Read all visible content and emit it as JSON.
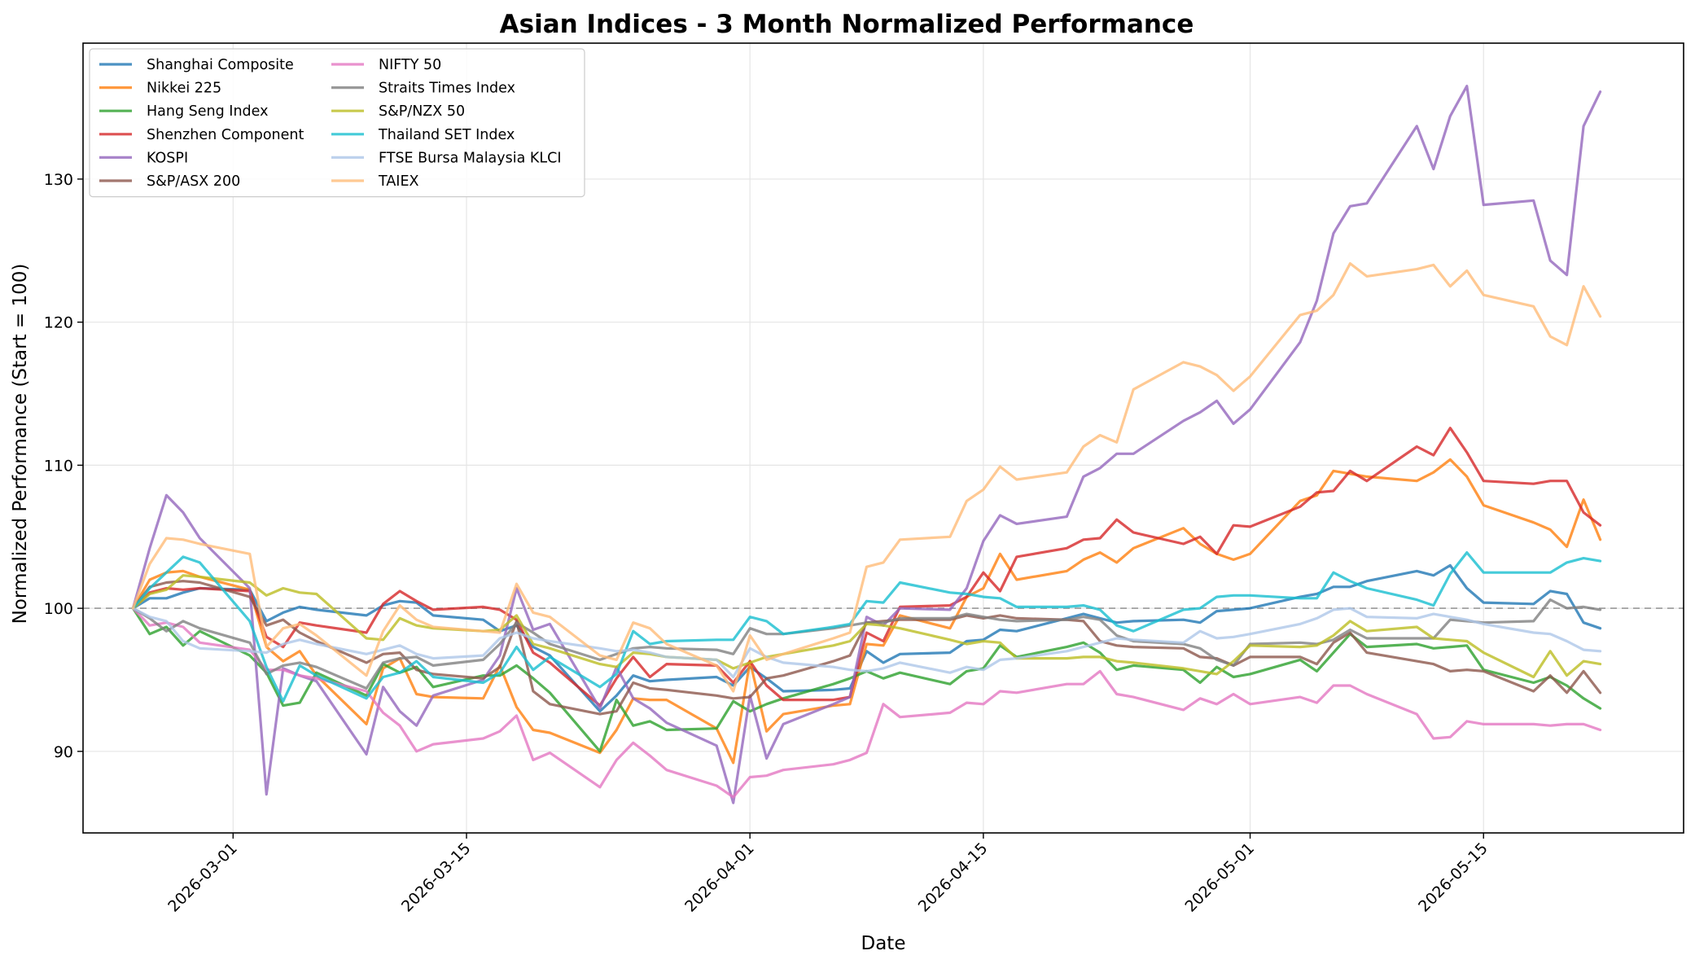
{
  "chart_data": {
    "type": "line",
    "title": "Asian Indices - 3 Month Normalized Performance",
    "xlabel": "Date",
    "ylabel": "Normalized Performance (Start = 100)",
    "x_type": "date",
    "xlim": [
      "2026-02-20",
      "2026-05-27"
    ],
    "ylim": [
      84.3,
      139.5
    ],
    "x_ticks": [
      "2026-03-01",
      "2026-03-15",
      "2026-04-01",
      "2026-04-15",
      "2026-05-01",
      "2026-05-15"
    ],
    "y_ticks": [
      90,
      100,
      110,
      120,
      130
    ],
    "reference_line": 100,
    "grid": true,
    "legend_position": "upper-left",
    "legend_columns": 2,
    "x": [
      "2026-02-23",
      "2026-02-24",
      "2026-02-25",
      "2026-02-26",
      "2026-02-27",
      "2026-03-02",
      "2026-03-03",
      "2026-03-04",
      "2026-03-05",
      "2026-03-06",
      "2026-03-09",
      "2026-03-10",
      "2026-03-11",
      "2026-03-12",
      "2026-03-13",
      "2026-03-16",
      "2026-03-17",
      "2026-03-18",
      "2026-03-19",
      "2026-03-20",
      "2026-03-23",
      "2026-03-24",
      "2026-03-25",
      "2026-03-26",
      "2026-03-27",
      "2026-03-30",
      "2026-03-31",
      "2026-04-01",
      "2026-04-02",
      "2026-04-03",
      "2026-04-06",
      "2026-04-07",
      "2026-04-08",
      "2026-04-09",
      "2026-04-10",
      "2026-04-13",
      "2026-04-14",
      "2026-04-15",
      "2026-04-16",
      "2026-04-17",
      "2026-04-20",
      "2026-04-21",
      "2026-04-22",
      "2026-04-23",
      "2026-04-24",
      "2026-04-27",
      "2026-04-28",
      "2026-04-29",
      "2026-04-30",
      "2026-05-01",
      "2026-05-04",
      "2026-05-05",
      "2026-05-06",
      "2026-05-07",
      "2026-05-08",
      "2026-05-11",
      "2026-05-12",
      "2026-05-13",
      "2026-05-14",
      "2026-05-15",
      "2026-05-18",
      "2026-05-19",
      "2026-05-20",
      "2026-05-21",
      "2026-05-22"
    ],
    "series": [
      {
        "name": "Shanghai Composite",
        "color": "#1f77b4",
        "values": [
          100,
          100.7,
          100.7,
          101.1,
          101.4,
          101.3,
          99.1,
          99.7,
          100.1,
          99.9,
          99.5,
          100.2,
          100.5,
          100.4,
          99.5,
          99.2,
          98.4,
          98.8,
          97.3,
          96.7,
          92.8,
          93.9,
          95.3,
          94.9,
          95.0,
          95.2,
          94.6,
          95.9,
          95.1,
          94.2,
          94.3,
          94.4,
          97.0,
          96.2,
          96.8,
          96.9,
          97.7,
          97.8,
          98.5,
          98.4,
          99.3,
          99.6,
          99.3,
          99.0,
          99.1,
          99.2,
          99.0,
          99.8,
          99.9,
          100.0,
          100.8,
          101.0,
          101.5,
          101.5,
          101.9,
          102.6,
          102.3,
          103.0,
          101.4,
          100.4,
          100.3,
          101.2,
          101.0,
          99.0,
          98.6
        ]
      },
      {
        "name": "Nikkei 225",
        "color": "#ff7f0e",
        "values": [
          100,
          102.0,
          102.5,
          102.6,
          102.2,
          101.3,
          97.3,
          96.3,
          97.0,
          95.3,
          91.9,
          95.8,
          96.5,
          94.0,
          93.8,
          93.7,
          96.0,
          93.1,
          91.5,
          91.3,
          89.9,
          91.5,
          93.7,
          93.6,
          93.6,
          91.6,
          89.2,
          96.3,
          91.4,
          92.6,
          93.2,
          93.3,
          97.5,
          97.4,
          99.5,
          98.6,
          100.8,
          101.4,
          103.8,
          102.0,
          102.6,
          103.4,
          103.9,
          103.2,
          104.2,
          105.6,
          104.5,
          103.8,
          103.4,
          103.8,
          107.5,
          107.9,
          109.6,
          109.4,
          109.2,
          108.9,
          109.5,
          110.4,
          109.2,
          107.2,
          106.0,
          105.5,
          104.3,
          107.6,
          104.8
        ]
      },
      {
        "name": "Hang Seng Index",
        "color": "#2ca02c",
        "values": [
          100,
          98.2,
          98.7,
          97.4,
          98.4,
          96.7,
          95.5,
          93.2,
          93.4,
          95.5,
          93.9,
          96.1,
          95.5,
          95.9,
          94.5,
          95.3,
          95.3,
          96.0,
          95.1,
          94.1,
          90.0,
          93.6,
          91.8,
          92.1,
          91.5,
          91.6,
          93.5,
          92.8,
          93.3,
          93.7,
          94.7,
          95.1,
          95.6,
          95.1,
          95.5,
          94.7,
          95.6,
          95.8,
          97.4,
          96.6,
          97.3,
          97.6,
          96.9,
          95.7,
          96.0,
          95.7,
          94.8,
          95.9,
          95.2,
          95.4,
          96.4,
          95.6,
          96.9,
          98.2,
          97.3,
          97.5,
          97.2,
          97.3,
          97.4,
          95.7,
          94.8,
          95.2,
          94.6,
          93.7,
          93.0
        ]
      },
      {
        "name": "Shenzhen Component",
        "color": "#d62728",
        "values": [
          100,
          101.1,
          101.4,
          101.3,
          101.4,
          101.2,
          98.0,
          97.3,
          99.0,
          98.8,
          98.3,
          100.3,
          101.2,
          100.5,
          99.9,
          100.1,
          99.9,
          99.2,
          96.9,
          96.2,
          93.2,
          95.1,
          96.6,
          95.2,
          96.1,
          96.0,
          94.8,
          96.3,
          94.6,
          93.6,
          93.6,
          93.8,
          98.3,
          97.7,
          100.1,
          100.2,
          100.8,
          102.5,
          101.2,
          103.6,
          104.2,
          104.8,
          104.9,
          106.2,
          105.3,
          104.5,
          105.0,
          103.8,
          105.8,
          105.7,
          107.1,
          108.1,
          108.2,
          109.6,
          108.9,
          111.3,
          110.7,
          112.6,
          110.9,
          108.9,
          108.7,
          108.9,
          108.9,
          106.7,
          105.8
        ]
      },
      {
        "name": "KOSPI",
        "color": "#9467bd",
        "values": [
          100,
          104.2,
          107.9,
          106.7,
          104.9,
          101.4,
          87.0,
          95.8,
          95.3,
          94.9,
          89.8,
          94.5,
          92.8,
          91.8,
          93.9,
          95.0,
          96.7,
          101.4,
          98.5,
          98.9,
          93.0,
          95.9,
          93.7,
          93.0,
          92.0,
          90.4,
          86.4,
          93.9,
          89.5,
          91.9,
          93.3,
          93.8,
          99.4,
          98.8,
          100.0,
          99.9,
          101.4,
          104.7,
          106.5,
          105.9,
          106.4,
          109.2,
          109.8,
          110.8,
          110.8,
          113.1,
          113.7,
          114.5,
          112.9,
          113.9,
          118.6,
          121.5,
          126.2,
          128.1,
          128.3,
          133.7,
          130.7,
          134.4,
          136.5,
          128.2,
          128.5,
          124.3,
          123.3,
          133.7,
          136.1
        ]
      },
      {
        "name": "S&P/ASX 200",
        "color": "#8c564b",
        "values": [
          100,
          101.5,
          101.8,
          101.9,
          101.8,
          100.8,
          98.8,
          99.2,
          98.3,
          97.7,
          96.2,
          96.8,
          96.9,
          95.7,
          95.4,
          95.1,
          95.9,
          99.1,
          94.2,
          93.3,
          92.6,
          92.8,
          94.8,
          94.4,
          94.3,
          93.9,
          93.7,
          93.8,
          95.1,
          95.3,
          96.3,
          96.7,
          99.0,
          99.1,
          99.2,
          99.2,
          99.5,
          99.3,
          99.5,
          99.3,
          99.2,
          99.1,
          97.7,
          97.4,
          97.3,
          97.2,
          96.6,
          96.5,
          96.0,
          96.6,
          96.6,
          96.1,
          97.6,
          98.3,
          96.9,
          96.3,
          96.1,
          95.6,
          95.7,
          95.6,
          94.2,
          95.3,
          94.1,
          95.6,
          94.1
        ]
      },
      {
        "name": "NIFTY 50",
        "color": "#e377c2",
        "values": [
          100,
          98.8,
          99.0,
          98.7,
          97.6,
          97.1,
          95.7,
          95.7,
          95.3,
          95.1,
          94.2,
          92.7,
          91.8,
          90.0,
          90.5,
          90.9,
          91.4,
          92.5,
          89.4,
          89.9,
          87.5,
          89.4,
          90.6,
          89.7,
          88.7,
          87.6,
          86.8,
          88.2,
          88.3,
          88.7,
          89.1,
          89.4,
          89.9,
          93.3,
          92.4,
          92.7,
          93.4,
          93.3,
          94.2,
          94.1,
          94.7,
          94.7,
          95.6,
          94.0,
          93.8,
          92.9,
          93.7,
          93.3,
          94.0,
          93.3,
          93.8,
          93.4,
          94.6,
          94.6,
          94.0,
          92.6,
          90.9,
          91.0,
          92.1,
          91.9,
          91.9,
          91.8,
          91.9,
          91.9,
          91.5
        ]
      },
      {
        "name": "Straits Times Index",
        "color": "#7f7f7f",
        "values": [
          100,
          99.3,
          98.4,
          99.1,
          98.6,
          97.6,
          95.4,
          96.0,
          96.2,
          95.9,
          94.4,
          96.2,
          96.5,
          96.6,
          96.0,
          96.4,
          97.5,
          99.0,
          98.3,
          97.5,
          96.4,
          96.8,
          97.2,
          97.3,
          97.2,
          97.1,
          96.8,
          98.6,
          98.2,
          98.2,
          98.6,
          98.8,
          99.0,
          99.0,
          99.3,
          99.3,
          99.6,
          99.4,
          99.2,
          99.1,
          99.2,
          99.4,
          99.2,
          98.1,
          97.7,
          97.5,
          97.2,
          96.4,
          96.0,
          97.5,
          97.6,
          97.5,
          97.8,
          98.5,
          97.9,
          97.9,
          97.9,
          99.2,
          99.1,
          99.0,
          99.1,
          100.6,
          100.0,
          100.1,
          99.9
        ]
      },
      {
        "name": "S&P/NZX 50",
        "color": "#bcbd22",
        "values": [
          100,
          101.0,
          101.3,
          102.3,
          102.2,
          101.8,
          100.9,
          101.4,
          101.1,
          101.0,
          97.9,
          97.8,
          99.3,
          98.8,
          98.6,
          98.4,
          98.5,
          99.5,
          97.5,
          97.2,
          96.1,
          95.9,
          96.9,
          96.8,
          96.6,
          96.4,
          95.8,
          96.2,
          96.6,
          96.8,
          97.4,
          97.7,
          98.9,
          98.8,
          98.6,
          97.8,
          97.5,
          97.7,
          97.6,
          96.5,
          96.5,
          96.6,
          96.6,
          96.3,
          96.2,
          95.8,
          95.6,
          95.4,
          96.3,
          97.4,
          97.3,
          97.4,
          98.1,
          99.1,
          98.4,
          98.7,
          97.9,
          97.8,
          97.7,
          96.9,
          95.2,
          97.0,
          95.3,
          96.3,
          96.1
        ]
      },
      {
        "name": "Thailand SET Index",
        "color": "#17becf",
        "values": [
          100,
          101.4,
          102.5,
          103.6,
          103.2,
          99.1,
          95.9,
          93.5,
          96.0,
          95.3,
          93.7,
          95.2,
          95.5,
          96.3,
          95.2,
          94.8,
          95.5,
          97.3,
          95.7,
          96.6,
          94.5,
          95.4,
          98.4,
          97.5,
          97.7,
          97.8,
          97.8,
          99.4,
          99.1,
          98.2,
          98.7,
          98.9,
          100.5,
          100.4,
          101.8,
          101.1,
          101.0,
          100.8,
          100.7,
          100.1,
          100.1,
          100.2,
          99.9,
          98.8,
          98.4,
          99.9,
          100.0,
          100.8,
          100.9,
          100.9,
          100.7,
          100.7,
          102.5,
          101.9,
          101.4,
          100.6,
          100.2,
          102.4,
          103.9,
          102.5,
          102.5,
          102.5,
          103.2,
          103.5,
          103.3
        ]
      },
      {
        "name": "FTSE Bursa Malaysia KLCI",
        "color": "#aec7e8",
        "values": [
          100,
          99.4,
          99.1,
          97.7,
          97.2,
          97.0,
          96.9,
          97.5,
          97.8,
          97.5,
          96.8,
          97.1,
          97.4,
          96.8,
          96.5,
          96.7,
          97.9,
          98.3,
          97.9,
          97.7,
          97.2,
          97.0,
          97.1,
          96.9,
          96.6,
          96.4,
          95.2,
          97.2,
          96.6,
          96.2,
          95.9,
          95.7,
          95.6,
          95.8,
          96.2,
          95.5,
          95.9,
          95.7,
          96.4,
          96.5,
          97.0,
          97.3,
          97.6,
          97.9,
          97.8,
          97.6,
          98.4,
          97.9,
          98.0,
          98.2,
          98.9,
          99.3,
          99.9,
          100.0,
          99.4,
          99.3,
          99.6,
          99.4,
          99.2,
          98.9,
          98.3,
          98.2,
          97.7,
          97.1,
          97.0
        ]
      },
      {
        "name": "TAIEX",
        "color": "#ffbb78",
        "values": [
          100,
          103.1,
          104.9,
          104.8,
          104.5,
          103.8,
          97.3,
          98.6,
          98.9,
          98.1,
          95.3,
          98.4,
          100.2,
          99.2,
          98.7,
          98.4,
          98.3,
          101.7,
          99.7,
          99.4,
          96.7,
          96.4,
          99.0,
          98.6,
          97.5,
          96.0,
          94.2,
          98.1,
          96.4,
          96.8,
          97.9,
          98.3,
          102.9,
          103.2,
          104.8,
          105.0,
          107.5,
          108.3,
          109.9,
          109.0,
          109.5,
          111.3,
          112.1,
          111.6,
          115.3,
          117.2,
          116.9,
          116.3,
          115.2,
          116.2,
          120.5,
          120.8,
          121.9,
          124.1,
          123.2,
          123.7,
          124.0,
          122.5,
          123.6,
          121.9,
          121.1,
          119.0,
          118.4,
          122.5,
          120.4
        ]
      }
    ]
  }
}
